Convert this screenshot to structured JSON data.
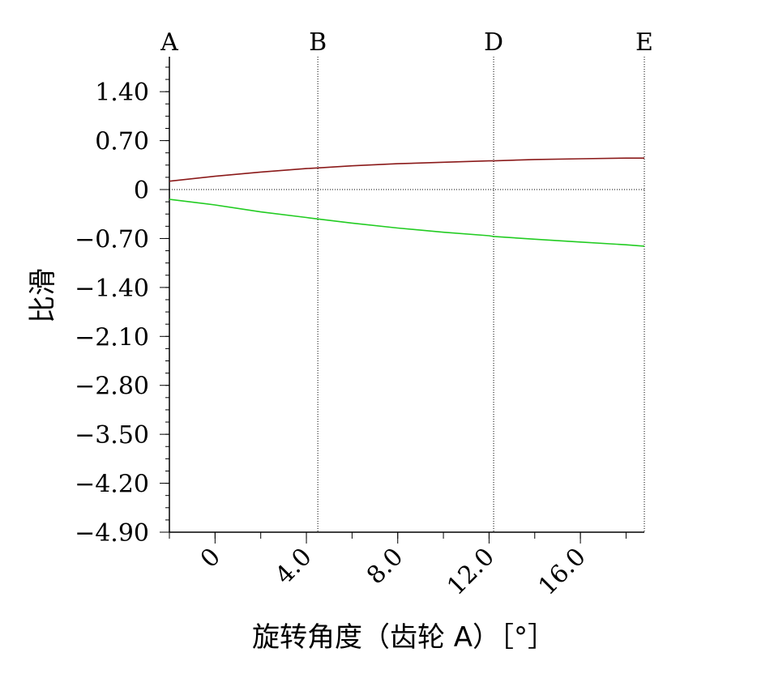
{
  "chart_data": {
    "type": "line",
    "xlabel": "旋转角度（齿轮 A）［°］",
    "ylabel": "比滑",
    "xlim": [
      -2.0,
      18.8
    ],
    "ylim": [
      -4.9,
      1.9
    ],
    "y_ticks": [
      1.4,
      0.7,
      0,
      -0.7,
      -1.4,
      -2.1,
      -2.8,
      -3.5,
      -4.2,
      -4.9
    ],
    "y_tick_labels": [
      "1.40",
      "0.70",
      "0",
      "−0.70",
      "−1.40",
      "−2.10",
      "−2.80",
      "−3.50",
      "−4.20",
      "−4.90"
    ],
    "x_ticks": [
      0,
      4.0,
      8.0,
      12.0,
      16.0
    ],
    "x_tick_labels": [
      "0",
      "4.0",
      "8.0",
      "12.0",
      "16.0"
    ],
    "x_minor_step": 2.0,
    "y_minor_step": 0.175,
    "markers": [
      {
        "label": "A",
        "x": -2.0
      },
      {
        "label": "B",
        "x": 4.5
      },
      {
        "label": "D",
        "x": 12.2
      },
      {
        "label": "E",
        "x": 18.8
      }
    ],
    "zero_line": true,
    "series": [
      {
        "color": "#8b1a1a",
        "x": [
          -2.0,
          0,
          2.0,
          4.0,
          4.5,
          6.0,
          8.0,
          10.0,
          12.0,
          12.2,
          14.0,
          16.0,
          18.0,
          18.8
        ],
        "y": [
          0.12,
          0.19,
          0.25,
          0.3,
          0.31,
          0.34,
          0.37,
          0.39,
          0.41,
          0.41,
          0.43,
          0.44,
          0.45,
          0.45
        ]
      },
      {
        "color": "#22cc22",
        "x": [
          -2.0,
          0,
          2.0,
          4.0,
          4.5,
          6.0,
          8.0,
          10.0,
          12.0,
          12.2,
          14.0,
          16.0,
          18.0,
          18.8
        ],
        "y": [
          -0.14,
          -0.22,
          -0.32,
          -0.4,
          -0.42,
          -0.48,
          -0.55,
          -0.61,
          -0.66,
          -0.67,
          -0.71,
          -0.75,
          -0.79,
          -0.81
        ]
      }
    ]
  }
}
